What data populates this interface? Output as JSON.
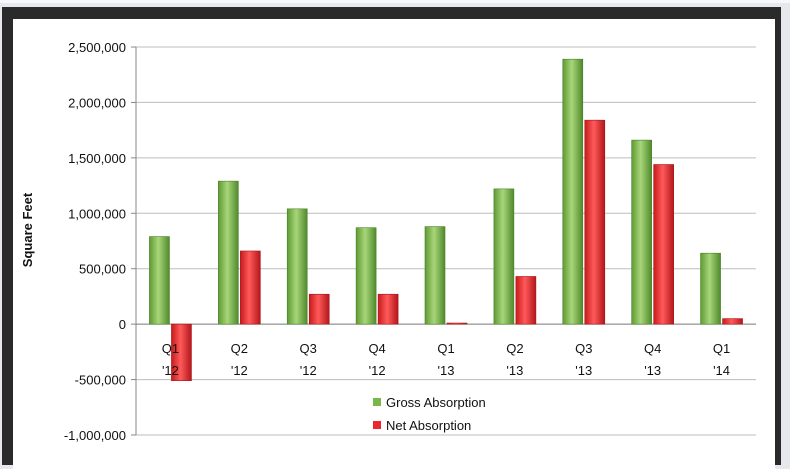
{
  "chart_data": {
    "type": "bar",
    "title": "",
    "xlabel": "",
    "ylabel": "Square Feet",
    "ylim": [
      -1000000,
      2500000
    ],
    "y_ticks": [
      "2,500,000",
      "2,000,000",
      "1,500,000",
      "1,000,000",
      "500,000",
      "0",
      "-500,000",
      "-1,000,000"
    ],
    "y_tick_values": [
      2500000,
      2000000,
      1500000,
      1000000,
      500000,
      0,
      -500000,
      -1000000
    ],
    "grid": true,
    "legend_position": "bottom",
    "categories": [
      {
        "q": "Q1",
        "y": "'12"
      },
      {
        "q": "Q2",
        "y": "'12"
      },
      {
        "q": "Q3",
        "y": "'12"
      },
      {
        "q": "Q4",
        "y": "'12"
      },
      {
        "q": "Q1",
        "y": "'13"
      },
      {
        "q": "Q2",
        "y": "'13"
      },
      {
        "q": "Q3",
        "y": "'13"
      },
      {
        "q": "Q4",
        "y": "'13"
      },
      {
        "q": "Q1",
        "y": "'14"
      }
    ],
    "series": [
      {
        "name": "Gross Absorption",
        "color": "#7ab648",
        "values": [
          790000,
          1290000,
          1040000,
          870000,
          880000,
          1220000,
          2390000,
          1660000,
          640000
        ]
      },
      {
        "name": "Net Absorption",
        "color": "#e8292b",
        "values": [
          -510000,
          660000,
          270000,
          270000,
          10000,
          430000,
          1840000,
          1440000,
          50000
        ]
      }
    ]
  }
}
